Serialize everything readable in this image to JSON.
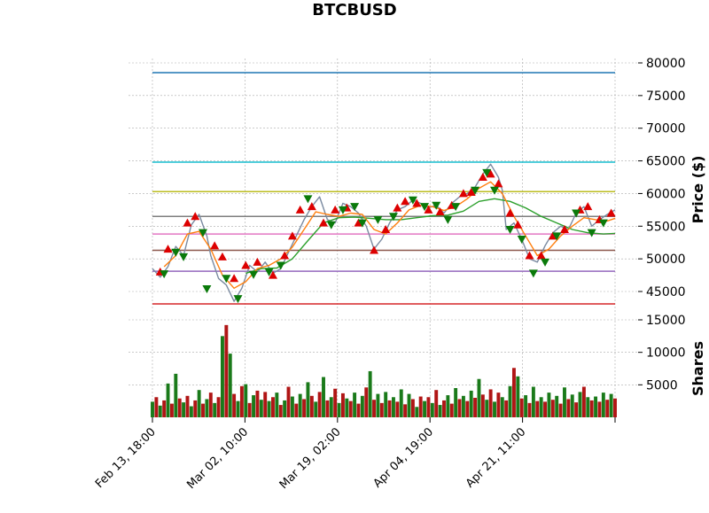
{
  "chart_data": {
    "type": "candlestick",
    "title": "BTCBUSD",
    "price_panel": {
      "ylabel": "Price ($)",
      "ylim": [
        40000,
        80000
      ],
      "yticks": [
        "80000",
        "75000",
        "70000",
        "65000",
        "60000",
        "55000",
        "50000",
        "45000"
      ],
      "grid": true,
      "horizontal_levels": [
        {
          "value": 78500,
          "color": "#1f77b4"
        },
        {
          "value": 64800,
          "color": "#17becf"
        },
        {
          "value": 60300,
          "color": "#bcbd22"
        },
        {
          "value": 56500,
          "color": "#7f7f7f"
        },
        {
          "value": 53800,
          "color": "#e377c2"
        },
        {
          "value": 51300,
          "color": "#8c564b"
        },
        {
          "value": 48100,
          "color": "#9467bd"
        },
        {
          "value": 43100,
          "color": "#d62728"
        }
      ],
      "price_series": [
        [
          0,
          48500
        ],
        [
          2,
          47200
        ],
        [
          4,
          48800
        ],
        [
          6,
          51900
        ],
        [
          8,
          50500
        ],
        [
          10,
          55200
        ],
        [
          12,
          56800
        ],
        [
          14,
          53500
        ],
        [
          15,
          50500
        ],
        [
          17,
          47000
        ],
        [
          19,
          46000
        ],
        [
          21,
          43500
        ],
        [
          23,
          45500
        ],
        [
          25,
          49000
        ],
        [
          27,
          48000
        ],
        [
          29,
          49500
        ],
        [
          31,
          47800
        ],
        [
          33,
          48500
        ],
        [
          35,
          51000
        ],
        [
          37,
          53500
        ],
        [
          39,
          56000
        ],
        [
          41,
          58000
        ],
        [
          43,
          59500
        ],
        [
          45,
          56000
        ],
        [
          47,
          55500
        ],
        [
          49,
          58500
        ],
        [
          51,
          58000
        ],
        [
          53,
          57000
        ],
        [
          55,
          55000
        ],
        [
          57,
          51500
        ],
        [
          59,
          53000
        ],
        [
          61,
          55500
        ],
        [
          63,
          57500
        ],
        [
          65,
          58000
        ],
        [
          67,
          59000
        ],
        [
          69,
          58500
        ],
        [
          71,
          57800
        ],
        [
          73,
          58200
        ],
        [
          75,
          57000
        ],
        [
          77,
          58500
        ],
        [
          79,
          59500
        ],
        [
          81,
          60000
        ],
        [
          83,
          61000
        ],
        [
          85,
          63000
        ],
        [
          87,
          64500
        ],
        [
          89,
          62500
        ],
        [
          90,
          60500
        ],
        [
          91,
          54500
        ],
        [
          93,
          55500
        ],
        [
          95,
          53000
        ],
        [
          97,
          50000
        ],
        [
          99,
          49500
        ],
        [
          101,
          52000
        ],
        [
          103,
          54000
        ],
        [
          105,
          55000
        ],
        [
          107,
          54500
        ],
        [
          109,
          57000
        ],
        [
          111,
          58000
        ],
        [
          113,
          55000
        ],
        [
          115,
          56000
        ],
        [
          117,
          56800
        ],
        [
          119,
          57500
        ]
      ],
      "ma_fast": [
        [
          3,
          48800
        ],
        [
          6,
          50500
        ],
        [
          9,
          53800
        ],
        [
          12,
          54200
        ],
        [
          15,
          51500
        ],
        [
          18,
          47500
        ],
        [
          21,
          45500
        ],
        [
          24,
          46500
        ],
        [
          27,
          48500
        ],
        [
          30,
          49000
        ],
        [
          33,
          50000
        ],
        [
          36,
          51800
        ],
        [
          39,
          54500
        ],
        [
          42,
          57200
        ],
        [
          45,
          56800
        ],
        [
          48,
          56500
        ],
        [
          51,
          57000
        ],
        [
          54,
          56800
        ],
        [
          57,
          54500
        ],
        [
          60,
          53800
        ],
        [
          63,
          55500
        ],
        [
          66,
          57500
        ],
        [
          69,
          58200
        ],
        [
          72,
          58000
        ],
        [
          75,
          57400
        ],
        [
          78,
          58000
        ],
        [
          81,
          59200
        ],
        [
          84,
          60800
        ],
        [
          87,
          61800
        ],
        [
          90,
          60000
        ],
        [
          93,
          56500
        ],
        [
          96,
          53500
        ],
        [
          99,
          50500
        ],
        [
          102,
          51500
        ],
        [
          105,
          53500
        ],
        [
          108,
          55000
        ],
        [
          111,
          56300
        ],
        [
          114,
          56000
        ],
        [
          117,
          55800
        ],
        [
          119,
          56200
        ]
      ],
      "ma_slow": [
        [
          24,
          47800
        ],
        [
          28,
          48500
        ],
        [
          32,
          48600
        ],
        [
          36,
          50000
        ],
        [
          40,
          52800
        ],
        [
          44,
          55500
        ],
        [
          48,
          56300
        ],
        [
          52,
          56400
        ],
        [
          56,
          56200
        ],
        [
          60,
          56000
        ],
        [
          64,
          56000
        ],
        [
          68,
          56300
        ],
        [
          72,
          56600
        ],
        [
          76,
          56700
        ],
        [
          80,
          57300
        ],
        [
          84,
          58800
        ],
        [
          88,
          59200
        ],
        [
          92,
          58800
        ],
        [
          96,
          57800
        ],
        [
          100,
          56500
        ],
        [
          104,
          55500
        ],
        [
          108,
          54500
        ],
        [
          112,
          54000
        ],
        [
          116,
          53800
        ],
        [
          119,
          53900
        ]
      ],
      "buy_signals": [
        [
          2,
          48000
        ],
        [
          4,
          51500
        ],
        [
          9,
          55500
        ],
        [
          11,
          56500
        ],
        [
          16,
          52000
        ],
        [
          18,
          50300
        ],
        [
          21,
          47000
        ],
        [
          24,
          49000
        ],
        [
          27,
          49500
        ],
        [
          31,
          47500
        ],
        [
          34,
          50500
        ],
        [
          36,
          53500
        ],
        [
          38,
          57500
        ],
        [
          41,
          58000
        ],
        [
          44,
          55500
        ],
        [
          47,
          57500
        ],
        [
          50,
          57800
        ],
        [
          53,
          55500
        ],
        [
          57,
          51300
        ],
        [
          60,
          54500
        ],
        [
          63,
          57800
        ],
        [
          65,
          58800
        ],
        [
          68,
          58500
        ],
        [
          71,
          57500
        ],
        [
          74,
          57200
        ],
        [
          77,
          58200
        ],
        [
          80,
          60000
        ],
        [
          82,
          60200
        ],
        [
          85,
          62500
        ],
        [
          87,
          63000
        ],
        [
          89,
          61500
        ],
        [
          92,
          57000
        ],
        [
          94,
          55200
        ],
        [
          97,
          50500
        ],
        [
          100,
          50500
        ],
        [
          103,
          53500
        ],
        [
          106,
          54500
        ],
        [
          110,
          57500
        ],
        [
          112,
          58000
        ],
        [
          115,
          56000
        ],
        [
          118,
          57000
        ]
      ],
      "sell_signals": [
        [
          3,
          47700
        ],
        [
          6,
          51000
        ],
        [
          8,
          50300
        ],
        [
          13,
          54000
        ],
        [
          14,
          45400
        ],
        [
          19,
          47000
        ],
        [
          22,
          43900
        ],
        [
          26,
          47600
        ],
        [
          30,
          48000
        ],
        [
          33,
          49000
        ],
        [
          40,
          59200
        ],
        [
          46,
          55200
        ],
        [
          49,
          57500
        ],
        [
          52,
          58000
        ],
        [
          54,
          55500
        ],
        [
          58,
          56000
        ],
        [
          62,
          56500
        ],
        [
          67,
          59000
        ],
        [
          70,
          58000
        ],
        [
          73,
          58200
        ],
        [
          76,
          56000
        ],
        [
          78,
          58000
        ],
        [
          83,
          60500
        ],
        [
          86,
          63200
        ],
        [
          88,
          60500
        ],
        [
          92,
          54500
        ],
        [
          95,
          53000
        ],
        [
          98,
          47800
        ],
        [
          101,
          49500
        ],
        [
          104,
          53500
        ],
        [
          109,
          57000
        ],
        [
          113,
          54000
        ],
        [
          116,
          55500
        ]
      ]
    },
    "volume_panel": {
      "ylabel": "Shares",
      "ylim": [
        0,
        15000
      ],
      "yticks": [
        "15000",
        "10000",
        "5000"
      ],
      "bars": [
        2400,
        3100,
        1800,
        2600,
        5200,
        2100,
        6700,
        2900,
        2300,
        3300,
        1700,
        2600,
        4200,
        2100,
        2800,
        3800,
        2200,
        3100,
        12500,
        14200,
        9800,
        3600,
        2500,
        4800,
        5100,
        2200,
        3400,
        4100,
        2700,
        3900,
        2500,
        3100,
        3800,
        1900,
        2600,
        4700,
        3200,
        2100,
        3600,
        2800,
        5400,
        3300,
        2400,
        3900,
        6200,
        2600,
        3100,
        4400,
        2200,
        3700,
        2900,
        2500,
        3800,
        2100,
        3300,
        4600,
        7100,
        2700,
        3600,
        2200,
        3900,
        2600,
        3100,
        2400,
        4300,
        2000,
        3600,
        2800,
        1600,
        3200,
        2500,
        3100,
        2200,
        4200,
        1900,
        2600,
        3400,
        2100,
        4500,
        2800,
        3300,
        2500,
        4100,
        3000,
        5900,
        3500,
        2700,
        4300,
        2400,
        3800,
        3100,
        2600,
        4800,
        7600,
        6300,
        2900,
        3400,
        2200,
        4700,
        2500,
        3100,
        2400,
        3800,
        2700,
        3300,
        2100,
        4600,
        2800,
        3500,
        2300,
        3900,
        4700,
        3100,
        2600,
        3200,
        2400,
        3800,
        2700,
        3600,
        2900
      ],
      "bar_colors": [
        "#1a7a1a",
        "#b01515"
      ]
    },
    "x_tick_labels": [
      "Feb 13, 18:00",
      "Mar 02, 10:00",
      "Mar 19, 02:00",
      "Apr 04, 19:00",
      "Apr 21, 11:00"
    ],
    "n_points": 120,
    "colors": {
      "price_line": "#7a8aa0",
      "ma_fast": "#ff7f0e",
      "ma_slow": "#2ca02c",
      "buy_marker": "#dd0000",
      "sell_marker": "#0a7a0a",
      "grid": "#aaaaaa"
    }
  }
}
